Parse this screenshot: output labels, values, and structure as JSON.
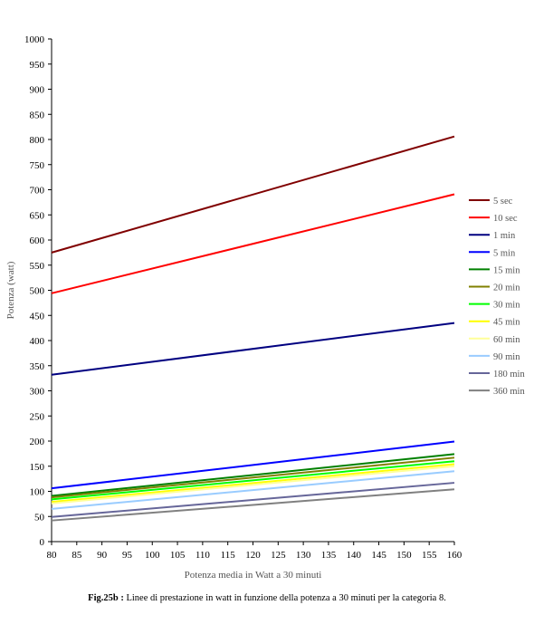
{
  "chart_data": {
    "type": "line",
    "xlabel": "Potenza media in Watt a 30 minuti",
    "ylabel": "Potenza (watt)",
    "xlim": [
      80,
      160
    ],
    "ylim": [
      0,
      1000
    ],
    "x_ticks": [
      80,
      85,
      90,
      95,
      100,
      105,
      110,
      115,
      120,
      125,
      130,
      135,
      140,
      145,
      150,
      155,
      160
    ],
    "y_ticks": [
      0,
      50,
      100,
      150,
      200,
      250,
      300,
      350,
      400,
      450,
      500,
      550,
      600,
      650,
      700,
      750,
      800,
      850,
      900,
      950,
      1000
    ],
    "grid": false,
    "legend_position": "right",
    "x": [
      80,
      160
    ],
    "series": [
      {
        "name": "5 sec",
        "color": "#800000",
        "values": [
          575,
          806
        ]
      },
      {
        "name": "10 sec",
        "color": "#ff0000",
        "values": [
          494,
          691
        ]
      },
      {
        "name": "1 min",
        "color": "#000080",
        "values": [
          332,
          435
        ]
      },
      {
        "name": "5 min",
        "color": "#0000ff",
        "values": [
          106,
          199
        ]
      },
      {
        "name": "15 min",
        "color": "#008000",
        "values": [
          91,
          174
        ]
      },
      {
        "name": "20 min",
        "color": "#808000",
        "values": [
          88,
          167
        ]
      },
      {
        "name": "30 min",
        "color": "#00ff00",
        "values": [
          84,
          160
        ]
      },
      {
        "name": "45 min",
        "color": "#ffff00",
        "values": [
          79,
          154
        ]
      },
      {
        "name": "60 min",
        "color": "#ffff99",
        "values": [
          76,
          150
        ]
      },
      {
        "name": "90 min",
        "color": "#99ccff",
        "values": [
          65,
          140
        ]
      },
      {
        "name": "180 min",
        "color": "#666699",
        "values": [
          49,
          117
        ]
      },
      {
        "name": "360 min",
        "color": "#808080",
        "values": [
          42,
          104
        ]
      }
    ]
  },
  "caption": {
    "label": "Fig.25b :",
    "text": "Linee di prestazione in watt in funzione della potenza a 30 minuti per la categoria 8."
  }
}
